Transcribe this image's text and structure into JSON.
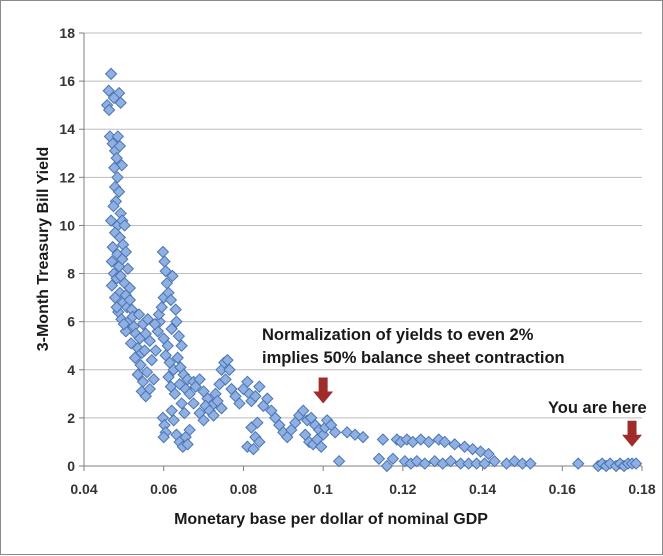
{
  "chart_data": {
    "type": "scatter",
    "title": "",
    "xlabel": "Monetary base per dollar of nominal GDP",
    "ylabel": "3-Month Treasury Bill Yield",
    "xlim": [
      0.04,
      0.18
    ],
    "ylim": [
      0,
      18
    ],
    "xticks": [
      0.04,
      0.06,
      0.08,
      0.1,
      0.12,
      0.14,
      0.16,
      0.18
    ],
    "xtick_labels": [
      "0.04",
      "0.06",
      "0.08",
      "0.1",
      "0.12",
      "0.14",
      "0.16",
      "0.18"
    ],
    "yticks": [
      0,
      2,
      4,
      6,
      8,
      10,
      12,
      14,
      16,
      18
    ],
    "ytick_labels": [
      "0",
      "2",
      "4",
      "6",
      "8",
      "10",
      "12",
      "14",
      "16",
      "18"
    ],
    "grid": "horizontal",
    "marker": "diamond",
    "colors": {
      "fill": "#8fb0e0",
      "edge": "#4a74b5",
      "arrow": "#a02b2b"
    },
    "annotations": [
      {
        "name": "normalization",
        "lines": [
          "Normalization of yields to even 2%",
          "implies 50% balance sheet contraction"
        ],
        "arrow_x": 0.1,
        "arrow_y": 2.6
      },
      {
        "name": "you-are-here",
        "lines": [
          "You are here"
        ],
        "arrow_x": 0.1775,
        "arrow_y": 0.8
      }
    ],
    "points": [
      [
        0.0468,
        16.3
      ],
      [
        0.0462,
        15.6
      ],
      [
        0.0458,
        15.0
      ],
      [
        0.0463,
        14.8
      ],
      [
        0.0488,
        15.5
      ],
      [
        0.0492,
        15.1
      ],
      [
        0.0475,
        15.3
      ],
      [
        0.0465,
        13.7
      ],
      [
        0.0472,
        13.4
      ],
      [
        0.0478,
        13.1
      ],
      [
        0.0485,
        13.7
      ],
      [
        0.049,
        13.3
      ],
      [
        0.0482,
        12.8
      ],
      [
        0.0495,
        12.5
      ],
      [
        0.0476,
        12.4
      ],
      [
        0.0484,
        12.0
      ],
      [
        0.0478,
        11.6
      ],
      [
        0.0488,
        11.4
      ],
      [
        0.048,
        11.0
      ],
      [
        0.0474,
        10.8
      ],
      [
        0.0492,
        10.5
      ],
      [
        0.0468,
        10.2
      ],
      [
        0.0485,
        10.0
      ],
      [
        0.0496,
        10.2
      ],
      [
        0.0502,
        10.0
      ],
      [
        0.0478,
        9.7
      ],
      [
        0.049,
        9.5
      ],
      [
        0.0498,
        9.2
      ],
      [
        0.0472,
        9.1
      ],
      [
        0.0484,
        8.8
      ],
      [
        0.0505,
        8.9
      ],
      [
        0.047,
        8.5
      ],
      [
        0.0488,
        8.3
      ],
      [
        0.0496,
        8.6
      ],
      [
        0.051,
        8.2
      ],
      [
        0.0475,
        8.0
      ],
      [
        0.0482,
        7.8
      ],
      [
        0.0502,
        7.6
      ],
      [
        0.0515,
        7.4
      ],
      [
        0.047,
        7.5
      ],
      [
        0.049,
        7.2
      ],
      [
        0.0478,
        7.0
      ],
      [
        0.0498,
        6.8
      ],
      [
        0.0508,
        6.6
      ],
      [
        0.052,
        6.5
      ],
      [
        0.0486,
        6.4
      ],
      [
        0.0494,
        6.1
      ],
      [
        0.0512,
        6.0
      ],
      [
        0.0525,
        5.8
      ],
      [
        0.0505,
        5.6
      ],
      [
        0.053,
        5.5
      ],
      [
        0.054,
        5.3
      ],
      [
        0.0518,
        5.1
      ],
      [
        0.0535,
        4.9
      ],
      [
        0.0545,
        4.7
      ],
      [
        0.0528,
        4.5
      ],
      [
        0.05,
        5.9
      ],
      [
        0.0482,
        6.6
      ],
      [
        0.0492,
        7.9
      ],
      [
        0.0505,
        7.1
      ],
      [
        0.0515,
        6.9
      ],
      [
        0.0522,
        6.2
      ],
      [
        0.0538,
        6.3
      ],
      [
        0.0548,
        5.9
      ],
      [
        0.0555,
        5.5
      ],
      [
        0.056,
        6.1
      ],
      [
        0.0565,
        5.2
      ],
      [
        0.0552,
        4.8
      ],
      [
        0.0542,
        4.2
      ],
      [
        0.0535,
        3.8
      ],
      [
        0.0548,
        3.5
      ],
      [
        0.0558,
        3.9
      ],
      [
        0.057,
        4.4
      ],
      [
        0.0545,
        3.1
      ],
      [
        0.0555,
        2.9
      ],
      [
        0.0565,
        3.2
      ],
      [
        0.0575,
        3.6
      ],
      [
        0.058,
        4.8
      ],
      [
        0.0585,
        5.6
      ],
      [
        0.059,
        6.0
      ],
      [
        0.0578,
        5.9
      ],
      [
        0.0588,
        6.3
      ],
      [
        0.0595,
        6.6
      ],
      [
        0.06,
        7.0
      ],
      [
        0.0598,
        8.9
      ],
      [
        0.0602,
        8.5
      ],
      [
        0.0605,
        8.1
      ],
      [
        0.0608,
        7.6
      ],
      [
        0.0612,
        7.2
      ],
      [
        0.0618,
        6.9
      ],
      [
        0.0622,
        7.9
      ],
      [
        0.06,
        5.3
      ],
      [
        0.061,
        5.0
      ],
      [
        0.062,
        5.7
      ],
      [
        0.063,
        6.5
      ],
      [
        0.0632,
        6.0
      ],
      [
        0.0638,
        5.4
      ],
      [
        0.0645,
        5.0
      ],
      [
        0.0605,
        4.6
      ],
      [
        0.0615,
        4.3
      ],
      [
        0.0625,
        4.0
      ],
      [
        0.0635,
        4.5
      ],
      [
        0.0642,
        4.1
      ],
      [
        0.065,
        3.8
      ],
      [
        0.066,
        3.6
      ],
      [
        0.0612,
        3.7
      ],
      [
        0.0618,
        3.3
      ],
      [
        0.0628,
        3.0
      ],
      [
        0.064,
        3.4
      ],
      [
        0.0655,
        3.2
      ],
      [
        0.0665,
        3.0
      ],
      [
        0.0675,
        3.5
      ],
      [
        0.0598,
        2.0
      ],
      [
        0.0602,
        1.7
      ],
      [
        0.0605,
        1.4
      ],
      [
        0.06,
        1.2
      ],
      [
        0.062,
        2.3
      ],
      [
        0.0625,
        1.9
      ],
      [
        0.0632,
        1.3
      ],
      [
        0.064,
        1.0
      ],
      [
        0.0648,
        0.8
      ],
      [
        0.0655,
        1.2
      ],
      [
        0.066,
        0.9
      ],
      [
        0.0665,
        1.5
      ],
      [
        0.0645,
        2.6
      ],
      [
        0.0652,
        2.2
      ],
      [
        0.068,
        3.3
      ],
      [
        0.069,
        3.6
      ],
      [
        0.07,
        3.1
      ],
      [
        0.071,
        2.8
      ],
      [
        0.072,
        2.5
      ],
      [
        0.073,
        3.0
      ],
      [
        0.074,
        3.4
      ],
      [
        0.0745,
        4.0
      ],
      [
        0.0752,
        4.3
      ],
      [
        0.076,
        4.4
      ],
      [
        0.0765,
        4.0
      ],
      [
        0.0755,
        3.6
      ],
      [
        0.077,
        3.2
      ],
      [
        0.078,
        2.9
      ],
      [
        0.079,
        2.6
      ],
      [
        0.08,
        3.2
      ],
      [
        0.081,
        3.5
      ],
      [
        0.0815,
        3.0
      ],
      [
        0.082,
        2.7
      ],
      [
        0.083,
        2.9
      ],
      [
        0.084,
        3.3
      ],
      [
        0.085,
        2.5
      ],
      [
        0.086,
        2.8
      ],
      [
        0.087,
        2.3
      ],
      [
        0.088,
        2.0
      ],
      [
        0.089,
        1.7
      ],
      [
        0.09,
        1.4
      ],
      [
        0.091,
        1.2
      ],
      [
        0.082,
        1.6
      ],
      [
        0.083,
        1.2
      ],
      [
        0.081,
        0.8
      ],
      [
        0.0825,
        0.7
      ],
      [
        0.084,
        1.0
      ],
      [
        0.0835,
        1.8
      ],
      [
        0.07,
        1.9
      ],
      [
        0.069,
        2.2
      ],
      [
        0.0705,
        2.5
      ],
      [
        0.0715,
        2.3
      ],
      [
        0.0675,
        2.6
      ],
      [
        0.0735,
        2.7
      ],
      [
        0.0725,
        2.1
      ],
      [
        0.0745,
        2.4
      ],
      [
        0.092,
        1.5
      ],
      [
        0.093,
        1.8
      ],
      [
        0.094,
        2.1
      ],
      [
        0.095,
        2.3
      ],
      [
        0.096,
        1.9
      ],
      [
        0.097,
        2.0
      ],
      [
        0.098,
        1.7
      ],
      [
        0.099,
        1.5
      ],
      [
        0.1,
        1.3
      ],
      [
        0.1005,
        1.6
      ],
      [
        0.101,
        1.9
      ],
      [
        0.102,
        1.7
      ],
      [
        0.103,
        1.4
      ],
      [
        0.0955,
        1.3
      ],
      [
        0.0965,
        1.0
      ],
      [
        0.0975,
        0.9
      ],
      [
        0.0985,
        1.1
      ],
      [
        0.0995,
        0.8
      ],
      [
        0.104,
        0.2
      ],
      [
        0.106,
        1.4
      ],
      [
        0.108,
        1.3
      ],
      [
        0.11,
        1.2
      ],
      [
        0.114,
        0.3
      ],
      [
        0.115,
        1.1
      ],
      [
        0.116,
        0.0
      ],
      [
        0.1175,
        0.3
      ],
      [
        0.1185,
        1.1
      ],
      [
        0.1195,
        1.0
      ],
      [
        0.1205,
        0.2
      ],
      [
        0.121,
        1.1
      ],
      [
        0.122,
        0.1
      ],
      [
        0.1225,
        1.0
      ],
      [
        0.1235,
        0.2
      ],
      [
        0.1245,
        1.1
      ],
      [
        0.1255,
        0.1
      ],
      [
        0.1265,
        1.0
      ],
      [
        0.128,
        0.2
      ],
      [
        0.129,
        1.1
      ],
      [
        0.13,
        0.1
      ],
      [
        0.1305,
        1.0
      ],
      [
        0.132,
        0.2
      ],
      [
        0.133,
        0.9
      ],
      [
        0.1345,
        0.1
      ],
      [
        0.1355,
        0.8
      ],
      [
        0.1365,
        0.1
      ],
      [
        0.1375,
        0.7
      ],
      [
        0.1385,
        0.1
      ],
      [
        0.1395,
        0.6
      ],
      [
        0.1405,
        0.1
      ],
      [
        0.1415,
        0.5
      ],
      [
        0.143,
        0.2
      ],
      [
        0.146,
        0.1
      ],
      [
        0.148,
        0.2
      ],
      [
        0.15,
        0.1
      ],
      [
        0.152,
        0.1
      ],
      [
        0.164,
        0.1
      ],
      [
        0.169,
        0.0
      ],
      [
        0.17,
        0.1
      ],
      [
        0.171,
        0.0
      ],
      [
        0.172,
        0.1
      ],
      [
        0.1735,
        0.0
      ],
      [
        0.1745,
        0.1
      ],
      [
        0.1755,
        0.0
      ],
      [
        0.1765,
        0.1
      ],
      [
        0.1775,
        0.1
      ],
      [
        0.1785,
        0.1
      ]
    ]
  }
}
